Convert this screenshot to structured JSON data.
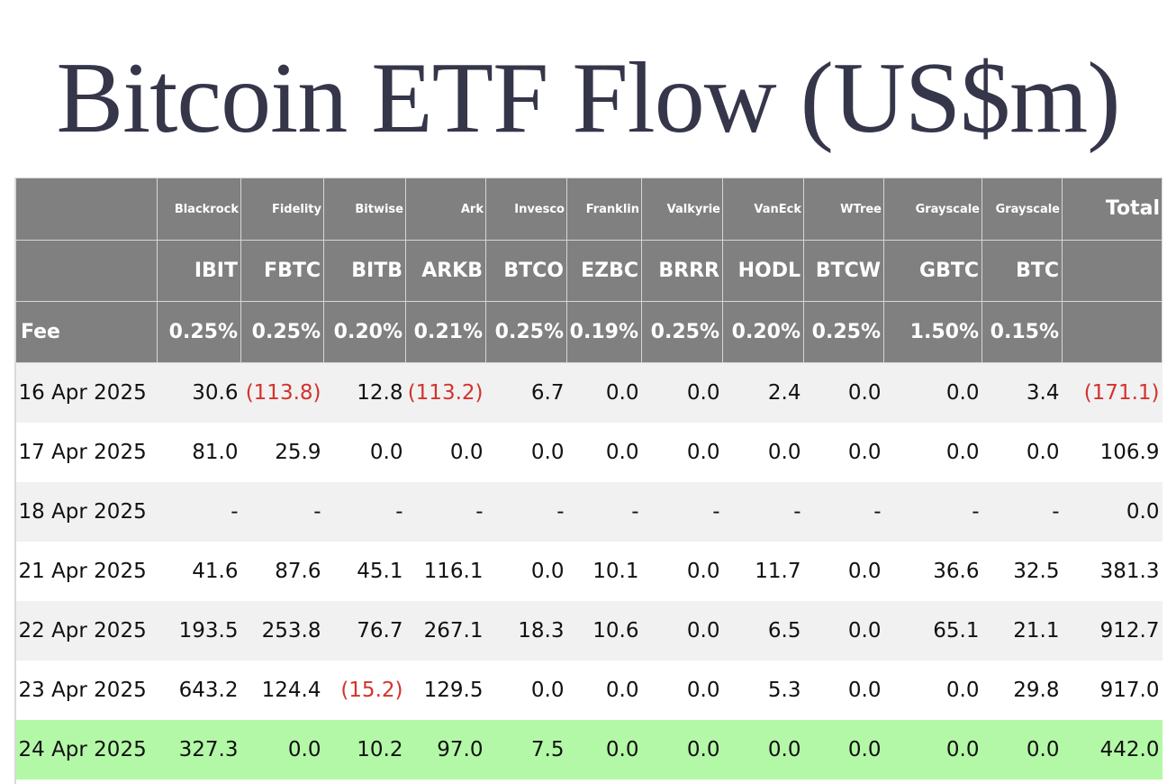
{
  "title": "Bitcoin ETF Flow (US$m)",
  "header": {
    "issuers": [
      "Blackrock",
      "Fidelity",
      "Bitwise",
      "Ark",
      "Invesco",
      "Franklin",
      "Valkyrie",
      "VanEck",
      "WTree",
      "Grayscale",
      "Grayscale"
    ],
    "total_label": "Total",
    "tickers": [
      "IBIT",
      "FBTC",
      "BITB",
      "ARKB",
      "BTCO",
      "EZBC",
      "BRRR",
      "HODL",
      "BTCW",
      "GBTC",
      "BTC"
    ],
    "fee_label": "Fee",
    "fees": [
      "0.25%",
      "0.25%",
      "0.20%",
      "0.21%",
      "0.25%",
      "0.19%",
      "0.25%",
      "0.20%",
      "0.25%",
      "1.50%",
      "0.15%"
    ]
  },
  "rows": [
    {
      "date": "16 Apr 2025",
      "values": [
        "30.6",
        "(113.8)",
        "12.8",
        "(113.2)",
        "6.7",
        "0.0",
        "0.0",
        "2.4",
        "0.0",
        "0.0",
        "3.4"
      ],
      "total": "(171.1)"
    },
    {
      "date": "17 Apr 2025",
      "values": [
        "81.0",
        "25.9",
        "0.0",
        "0.0",
        "0.0",
        "0.0",
        "0.0",
        "0.0",
        "0.0",
        "0.0",
        "0.0"
      ],
      "total": "106.9"
    },
    {
      "date": "18 Apr 2025",
      "values": [
        "-",
        "-",
        "-",
        "-",
        "-",
        "-",
        "-",
        "-",
        "-",
        "-",
        "-"
      ],
      "total": "0.0"
    },
    {
      "date": "21 Apr 2025",
      "values": [
        "41.6",
        "87.6",
        "45.1",
        "116.1",
        "0.0",
        "10.1",
        "0.0",
        "11.7",
        "0.0",
        "36.6",
        "32.5"
      ],
      "total": "381.3"
    },
    {
      "date": "22 Apr 2025",
      "values": [
        "193.5",
        "253.8",
        "76.7",
        "267.1",
        "18.3",
        "10.6",
        "0.0",
        "6.5",
        "0.0",
        "65.1",
        "21.1"
      ],
      "total": "912.7"
    },
    {
      "date": "23 Apr 2025",
      "values": [
        "643.2",
        "124.4",
        "(15.2)",
        "129.5",
        "0.0",
        "0.0",
        "0.0",
        "5.3",
        "0.0",
        "0.0",
        "29.8"
      ],
      "total": "917.0"
    },
    {
      "date": "24 Apr 2025",
      "values": [
        "327.3",
        "0.0",
        "10.2",
        "97.0",
        "7.5",
        "0.0",
        "0.0",
        "0.0",
        "0.0",
        "0.0",
        "0.0"
      ],
      "total": "442.0"
    }
  ],
  "colors": {
    "header_bg": "#808080",
    "title": "#35364a",
    "negative": "#d4322c",
    "highlight_row": "#b3f8a6",
    "zebra": "#f1f1f1"
  }
}
